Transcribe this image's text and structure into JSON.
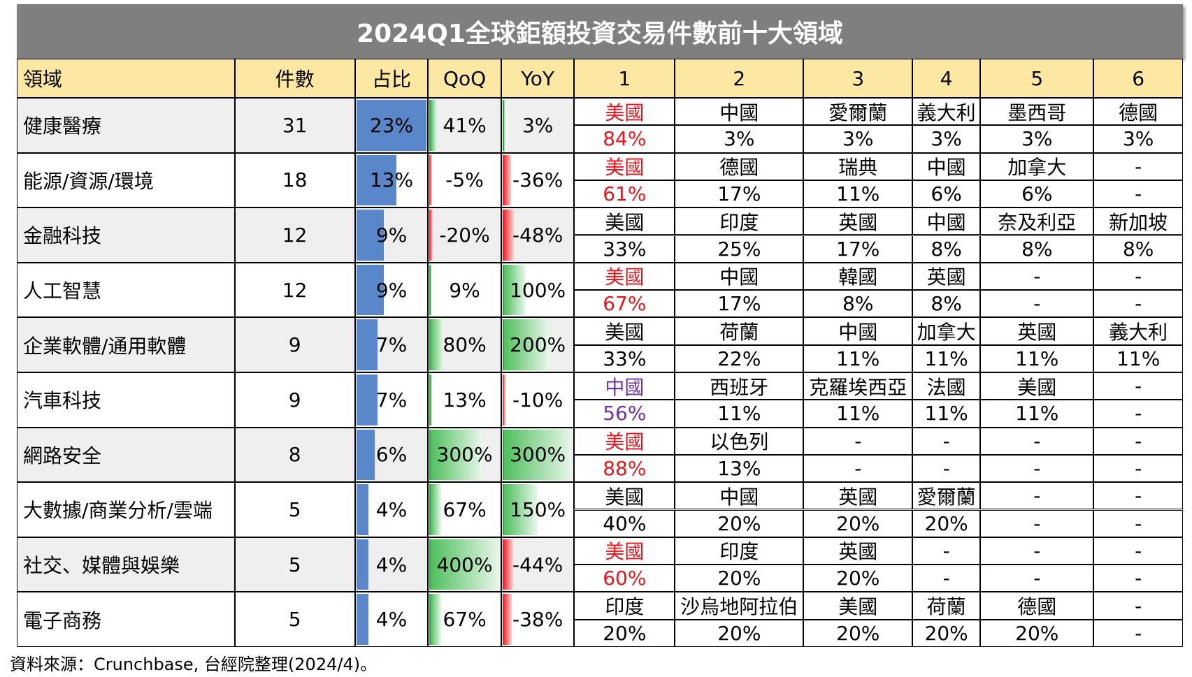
{
  "title": "2024Q1全球鉅額投資交易件數前十大領域",
  "header": [
    "領域",
    "件數",
    "占比",
    "QoQ",
    "YoY",
    "1",
    "2",
    "3",
    "4",
    "5",
    "6"
  ],
  "rows": [
    {
      "domain": "健康醫療",
      "count": 31,
      "share": {
        "value": 23,
        "label": "23%"
      },
      "qoq": {
        "value": 41,
        "label": "41%"
      },
      "yoy": {
        "value": 3,
        "label": "3%"
      },
      "lead_color": "#e8141b",
      "countries": [
        "美國",
        "中國",
        "愛爾蘭",
        "義大利",
        "墨西哥",
        "德國"
      ],
      "pcts": [
        "84%",
        "3%",
        "3%",
        "3%",
        "3%",
        "3%"
      ]
    },
    {
      "domain": "能源/資源/環境",
      "count": 18,
      "share": {
        "value": 13,
        "label": "13%"
      },
      "qoq": {
        "value": -5,
        "label": "-5%"
      },
      "yoy": {
        "value": -36,
        "label": "-36%"
      },
      "lead_color": "#e8141b",
      "countries": [
        "美國",
        "德國",
        "瑞典",
        "中國",
        "加拿大",
        "-"
      ],
      "pcts": [
        "61%",
        "17%",
        "11%",
        "6%",
        "6%",
        "-"
      ]
    },
    {
      "domain": "金融科技",
      "count": 12,
      "share": {
        "value": 9,
        "label": "9%"
      },
      "qoq": {
        "value": -20,
        "label": "-20%"
      },
      "yoy": {
        "value": -48,
        "label": "-48%"
      },
      "lead_color": "#000000",
      "countries": [
        "美國",
        "印度",
        "英國",
        "中國",
        "奈及利亞",
        "新加坡"
      ],
      "pcts": [
        "33%",
        "25%",
        "17%",
        "8%",
        "8%",
        "8%"
      ]
    },
    {
      "domain": "人工智慧",
      "count": 12,
      "share": {
        "value": 9,
        "label": "9%"
      },
      "qoq": {
        "value": 9,
        "label": "9%"
      },
      "yoy": {
        "value": 100,
        "label": "100%"
      },
      "lead_color": "#e8141b",
      "countries": [
        "美國",
        "中國",
        "韓國",
        "英國",
        "-",
        "-"
      ],
      "pcts": [
        "67%",
        "17%",
        "8%",
        "8%",
        "-",
        "-"
      ]
    },
    {
      "domain": "企業軟體/通用軟體",
      "count": 9,
      "share": {
        "value": 7,
        "label": "7%"
      },
      "qoq": {
        "value": 80,
        "label": "80%"
      },
      "yoy": {
        "value": 200,
        "label": "200%"
      },
      "lead_color": "#000000",
      "countries": [
        "美國",
        "荷蘭",
        "中國",
        "加拿大",
        "英國",
        "義大利"
      ],
      "pcts": [
        "33%",
        "22%",
        "11%",
        "11%",
        "11%",
        "11%"
      ]
    },
    {
      "domain": "汽車科技",
      "count": 9,
      "share": {
        "value": 7,
        "label": "7%"
      },
      "qoq": {
        "value": 13,
        "label": "13%"
      },
      "yoy": {
        "value": -10,
        "label": "-10%"
      },
      "lead_color": "#7030a0",
      "countries": [
        "中國",
        "西班牙",
        "克羅埃西亞",
        "法國",
        "美國",
        "-"
      ],
      "pcts": [
        "56%",
        "11%",
        "11%",
        "11%",
        "11%",
        "-"
      ]
    },
    {
      "domain": "網路安全",
      "count": 8,
      "share": {
        "value": 6,
        "label": "6%"
      },
      "qoq": {
        "value": 300,
        "label": "300%"
      },
      "yoy": {
        "value": 300,
        "label": "300%"
      },
      "lead_color": "#e8141b",
      "countries": [
        "美國",
        "以色列",
        "-",
        "-",
        "-",
        "-"
      ],
      "pcts": [
        "88%",
        "13%",
        "-",
        "-",
        "-",
        "-"
      ]
    },
    {
      "domain": "大數據/商業分析/雲端",
      "count": 5,
      "share": {
        "value": 4,
        "label": "4%"
      },
      "qoq": {
        "value": 67,
        "label": "67%"
      },
      "yoy": {
        "value": 150,
        "label": "150%"
      },
      "lead_color": "#000000",
      "countries": [
        "美國",
        "中國",
        "英國",
        "愛爾蘭",
        "-",
        "-"
      ],
      "pcts": [
        "40%",
        "20%",
        "20%",
        "20%",
        "-",
        "-"
      ]
    },
    {
      "domain": "社交、媒體與娛樂",
      "count": 5,
      "share": {
        "value": 4,
        "label": "4%"
      },
      "qoq": {
        "value": 400,
        "label": "400%"
      },
      "yoy": {
        "value": -44,
        "label": "-44%"
      },
      "lead_color": "#e8141b",
      "countries": [
        "美國",
        "印度",
        "英國",
        "-",
        "-",
        "-"
      ],
      "pcts": [
        "60%",
        "20%",
        "20%",
        "-",
        "-",
        "-"
      ]
    },
    {
      "domain": "電子商務",
      "count": 5,
      "share": {
        "value": 4,
        "label": "4%"
      },
      "qoq": {
        "value": 67,
        "label": "67%"
      },
      "yoy": {
        "value": -38,
        "label": "-38%"
      },
      "lead_color": "#000000",
      "countries": [
        "印度",
        "沙烏地阿拉伯",
        "美國",
        "荷蘭",
        "德國",
        "-"
      ],
      "pcts": [
        "20%",
        "20%",
        "20%",
        "20%",
        "20%",
        "-"
      ]
    }
  ],
  "source": "資料來源：Crunchbase, 台經院整理(2024/4)。"
}
